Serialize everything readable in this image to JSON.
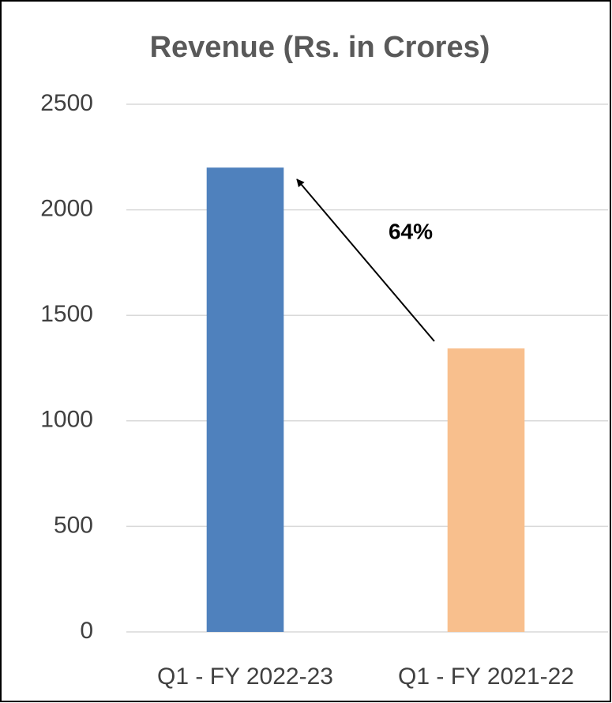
{
  "chart_data": {
    "type": "bar",
    "title": "Revenue (Rs. in Crores)",
    "categories": [
      "Q1 - FY 2022-23",
      "Q1 - FY 2021-22"
    ],
    "values": [
      2200,
      1343
    ],
    "colors": [
      "#4f81bd",
      "#f8bf8d"
    ],
    "annotation": "64%",
    "ylim": [
      0,
      2500
    ],
    "yticks": [
      0,
      500,
      1000,
      1500,
      2000,
      2500
    ],
    "grid": true
  }
}
